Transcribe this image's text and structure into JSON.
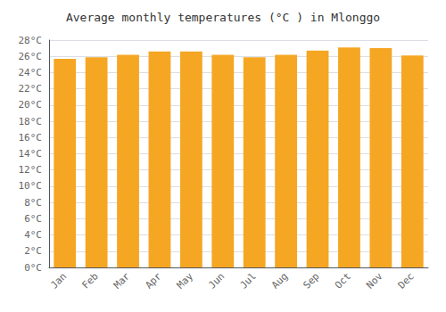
{
  "chart_data": {
    "type": "bar",
    "title": "Average monthly temperatures (°C ) in Mlonggo",
    "categories": [
      "Jan",
      "Feb",
      "Mar",
      "Apr",
      "May",
      "Jun",
      "Jul",
      "Aug",
      "Sep",
      "Oct",
      "Nov",
      "Dec"
    ],
    "values": [
      25.7,
      25.9,
      26.2,
      26.6,
      26.6,
      26.2,
      25.9,
      26.2,
      26.7,
      27.1,
      27.0,
      26.1
    ],
    "color": "#F5A623",
    "ylim": [
      0,
      28
    ],
    "yticks": [
      {
        "value": 0,
        "label": "0°C"
      },
      {
        "value": 2,
        "label": "2°C"
      },
      {
        "value": 4,
        "label": "4°C"
      },
      {
        "value": 6,
        "label": "6°C"
      },
      {
        "value": 8,
        "label": "8°C"
      },
      {
        "value": 10,
        "label": "10°C"
      },
      {
        "value": 12,
        "label": "12°C"
      },
      {
        "value": 14,
        "label": "14°C"
      },
      {
        "value": 16,
        "label": "16°C"
      },
      {
        "value": 18,
        "label": "18°C"
      },
      {
        "value": 20,
        "label": "20°C"
      },
      {
        "value": 22,
        "label": "22°C"
      },
      {
        "value": 24,
        "label": "24°C"
      },
      {
        "value": 26,
        "label": "26°C"
      },
      {
        "value": 28,
        "label": "28°C"
      }
    ],
    "grid": true
  }
}
